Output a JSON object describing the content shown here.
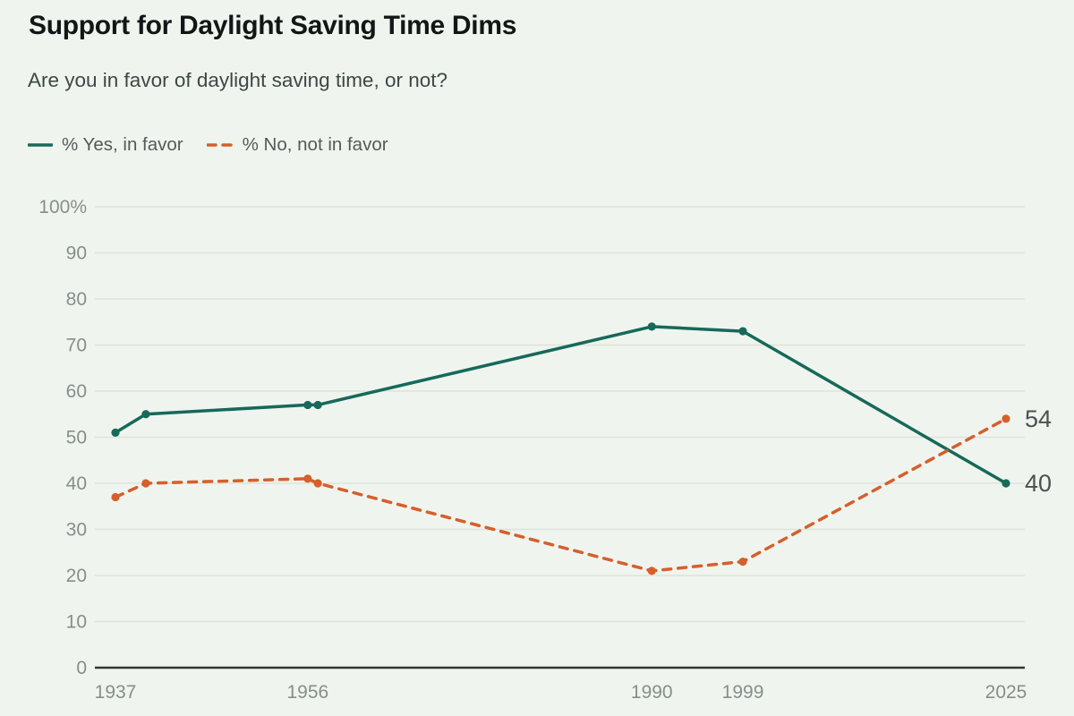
{
  "header": {
    "title": "Support for Daylight Saving Time Dims",
    "subtitle": "Are you in favor of daylight saving time, or not?"
  },
  "legend": {
    "items": [
      {
        "label": "% Yes, in favor"
      },
      {
        "label": "% No, not in favor"
      }
    ]
  },
  "chart_data": {
    "type": "line",
    "title": "Support for Daylight Saving Time Dims",
    "subtitle": "Are you in favor of daylight saving time, or not?",
    "xlabel": "",
    "ylabel": "",
    "x": [
      1937,
      1940,
      1956,
      1957,
      1990,
      1999,
      2025
    ],
    "series": [
      {
        "name": "% Yes, in favor",
        "style": "solid",
        "color": "#17695a",
        "values": [
          51,
          55,
          57,
          57,
          74,
          73,
          40
        ],
        "end_label": "40"
      },
      {
        "name": "% No, not in favor",
        "style": "dashed",
        "color": "#d65f2c",
        "values": [
          37,
          40,
          41,
          40,
          21,
          23,
          54
        ],
        "end_label": "54"
      }
    ],
    "xlim": [
      1937,
      2025
    ],
    "ylim": [
      0,
      100
    ],
    "grid": true,
    "legend_position": "top-left",
    "y_ticks": [
      {
        "value": 100,
        "label": "100%"
      },
      {
        "value": 90,
        "label": "90"
      },
      {
        "value": 80,
        "label": "80"
      },
      {
        "value": 70,
        "label": "70"
      },
      {
        "value": 60,
        "label": "60"
      },
      {
        "value": 50,
        "label": "50"
      },
      {
        "value": 40,
        "label": "40"
      },
      {
        "value": 30,
        "label": "30"
      },
      {
        "value": 20,
        "label": "20"
      },
      {
        "value": 10,
        "label": "10"
      },
      {
        "value": 0,
        "label": "0"
      }
    ],
    "x_ticks": [
      {
        "value": 1937,
        "label": "1937"
      },
      {
        "value": 1956,
        "label": "1956"
      },
      {
        "value": 1990,
        "label": "1990"
      },
      {
        "value": 1999,
        "label": "1999"
      },
      {
        "value": 2025,
        "label": "2025"
      }
    ]
  },
  "colors": {
    "background": "#eff5ee",
    "grid": "#dde4da",
    "axis": "#2f3634",
    "tick_text": "#868f8c",
    "end_label_text": "#4b5150",
    "title_text": "#131616",
    "subtitle_text": "#3e4747",
    "legend_text": "#535b59",
    "series_yes": "#17695a",
    "series_no": "#d65f2c"
  }
}
